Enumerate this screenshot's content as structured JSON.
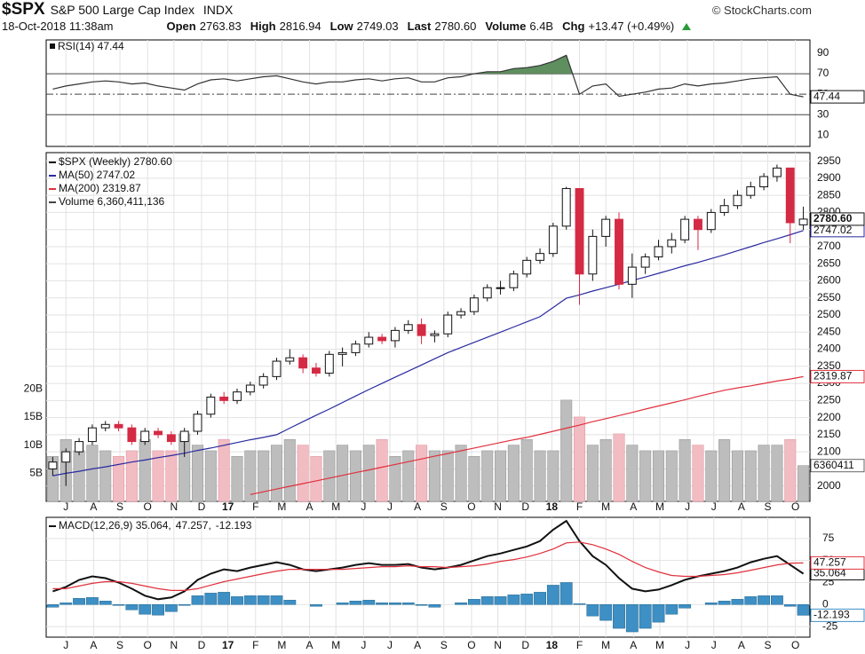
{
  "header": {
    "symbol": "$SPX",
    "name": "S&P 500 Large Cap Index",
    "exchange": "INDX",
    "credit": "© StockCharts.com",
    "date": "18-Oct-2018 11:38am",
    "quote": [
      [
        "Open",
        "2763.83"
      ],
      [
        "High",
        "2816.94"
      ],
      [
        "Low",
        "2749.03"
      ],
      [
        "Last",
        "2780.60"
      ],
      [
        "Volume",
        "6.4B"
      ],
      [
        "Chg",
        "+13.47 (+0.49%)"
      ]
    ]
  },
  "chart_data": [
    {
      "type": "line",
      "series": [
        {
          "name": "RSI(14) 47.44",
          "color": "#333333",
          "fill_color": "#5f8f5f",
          "last_label": "47.44",
          "values": [
            55,
            58,
            60,
            62,
            63,
            62,
            60,
            61,
            58,
            56,
            54,
            60,
            64,
            65,
            63,
            65,
            67,
            68,
            65,
            62,
            60,
            62,
            62,
            64,
            65,
            63,
            65,
            66,
            62,
            62,
            66,
            67,
            70,
            72,
            72,
            75,
            76,
            78,
            82,
            88,
            50,
            58,
            60,
            48,
            50,
            52,
            55,
            56,
            60,
            58,
            60,
            61,
            63,
            65,
            66,
            67,
            50,
            47.44
          ]
        }
      ],
      "ylim": [
        -1,
        103
      ],
      "yticks": [
        90,
        70,
        50,
        30,
        10
      ],
      "levels": [
        70,
        50,
        30
      ]
    },
    {
      "type": "candlestick",
      "ohlc": {
        "name": "$SPX (Weekly) 2780.60",
        "last_label": "2780.60",
        "open": [
          2050,
          2070,
          2100,
          2130,
          2170,
          2180,
          2170,
          2130,
          2160,
          2150,
          2130,
          2160,
          2210,
          2260,
          2250,
          2275,
          2295,
          2320,
          2365,
          2375,
          2345,
          2330,
          2385,
          2390,
          2415,
          2435,
          2425,
          2455,
          2472,
          2440,
          2445,
          2500,
          2510,
          2550,
          2580,
          2580,
          2620,
          2660,
          2680,
          2760,
          2870,
          2620,
          2730,
          2780,
          2590,
          2640,
          2670,
          2700,
          2720,
          2780,
          2750,
          2800,
          2820,
          2850,
          2875,
          2905,
          2930,
          2763.83
        ],
        "high": [
          2085,
          2110,
          2140,
          2180,
          2190,
          2190,
          2180,
          2170,
          2170,
          2160,
          2170,
          2220,
          2270,
          2275,
          2285,
          2305,
          2330,
          2375,
          2400,
          2385,
          2360,
          2395,
          2405,
          2425,
          2450,
          2445,
          2465,
          2485,
          2490,
          2455,
          2510,
          2520,
          2560,
          2590,
          2600,
          2630,
          2670,
          2695,
          2770,
          2875,
          2870,
          2750,
          2790,
          2800,
          2680,
          2680,
          2720,
          2740,
          2790,
          2790,
          2810,
          2840,
          2865,
          2890,
          2915,
          2940,
          2930,
          2816.94
        ],
        "low": [
          2030,
          2000,
          2090,
          2120,
          2160,
          2160,
          2120,
          2120,
          2140,
          2120,
          2085,
          2150,
          2200,
          2240,
          2240,
          2265,
          2285,
          2310,
          2355,
          2330,
          2320,
          2320,
          2350,
          2380,
          2405,
          2415,
          2405,
          2445,
          2415,
          2420,
          2435,
          2490,
          2500,
          2540,
          2560,
          2570,
          2610,
          2650,
          2670,
          2750,
          2530,
          2600,
          2700,
          2575,
          2550,
          2620,
          2660,
          2680,
          2710,
          2690,
          2740,
          2790,
          2810,
          2840,
          2865,
          2890,
          2710,
          2749.03
        ],
        "close": [
          2070,
          2100,
          2130,
          2170,
          2180,
          2170,
          2130,
          2160,
          2150,
          2130,
          2160,
          2210,
          2260,
          2250,
          2275,
          2295,
          2320,
          2365,
          2375,
          2345,
          2330,
          2385,
          2390,
          2415,
          2435,
          2425,
          2455,
          2472,
          2440,
          2445,
          2500,
          2510,
          2550,
          2580,
          2580,
          2620,
          2660,
          2680,
          2760,
          2870,
          2620,
          2730,
          2780,
          2590,
          2640,
          2670,
          2700,
          2720,
          2780,
          2750,
          2800,
          2820,
          2850,
          2875,
          2905,
          2930,
          2770,
          2780.6
        ],
        "up_color": "#ffffff",
        "down_color": "#d42a44"
      },
      "series": [
        {
          "name": "MA(50) 2747.02",
          "color": "#2a2aa0",
          "last_label": "2747.02",
          "values": [
            2030,
            2037,
            2043,
            2050,
            2056,
            2063,
            2070,
            2076,
            2083,
            2089,
            2096,
            2104,
            2111,
            2119,
            2127,
            2135,
            2142,
            2150,
            2169,
            2188,
            2207,
            2225,
            2244,
            2263,
            2282,
            2300,
            2318,
            2336,
            2354,
            2372,
            2390,
            2405,
            2420,
            2435,
            2450,
            2465,
            2480,
            2495,
            2522,
            2549,
            2559,
            2570,
            2580,
            2590,
            2601,
            2611,
            2622,
            2633,
            2644,
            2654,
            2665,
            2676,
            2688,
            2700,
            2712,
            2723,
            2735,
            2747.02
          ]
        },
        {
          "name": "MA(200) 2319.87",
          "color": "#e0303c",
          "last_label": "2319.87",
          "values": [
            null,
            null,
            null,
            null,
            null,
            null,
            null,
            null,
            null,
            null,
            null,
            null,
            null,
            null,
            null,
            1975,
            1983,
            1991,
            1999,
            2007,
            2015,
            2023,
            2031,
            2039,
            2047,
            2055,
            2063,
            2071,
            2079,
            2087,
            2095,
            2103,
            2111,
            2119,
            2127,
            2135,
            2142,
            2151,
            2160,
            2169,
            2178,
            2188,
            2197,
            2206,
            2215,
            2225,
            2234,
            2243,
            2252,
            2262,
            2271,
            2280,
            2287,
            2293,
            2300,
            2307,
            2313,
            2319.87
          ]
        }
      ],
      "volume": {
        "name": "Volume 6,360,411,136",
        "axis": "y2",
        "color": "#bdbdbd",
        "down_color": "#f2bcc3",
        "last_label": "6360411",
        "values": [
          8,
          11,
          9,
          10,
          9,
          8,
          9,
          11,
          9,
          9,
          12,
          10,
          9,
          11,
          8,
          9,
          9,
          10,
          11,
          10,
          8,
          9,
          10,
          9,
          10,
          11,
          8,
          9,
          10,
          9,
          9,
          10,
          8,
          9,
          9,
          10,
          11,
          9,
          9,
          18,
          15,
          10,
          11,
          12,
          10,
          9,
          9,
          9,
          11,
          10,
          9,
          11,
          9,
          9,
          10,
          10,
          11,
          6.360411
        ]
      },
      "ylim": [
        1955,
        2975
      ],
      "yticks": [
        2000,
        2050,
        2100,
        2150,
        2200,
        2250,
        2300,
        2350,
        2400,
        2450,
        2500,
        2550,
        2600,
        2650,
        2700,
        2750,
        2800,
        2850,
        2900,
        2950
      ],
      "y2lim": [
        0,
        62
      ],
      "y2ticks": [
        {
          "value": 5,
          "label": "5B"
        },
        {
          "value": 10,
          "label": "10B"
        },
        {
          "value": 15,
          "label": "15B"
        },
        {
          "value": 20,
          "label": "20B"
        }
      ],
      "xticks": [
        {
          "value": 1.0,
          "label": "J"
        },
        {
          "value": 3.1,
          "label": "A"
        },
        {
          "value": 5.1,
          "label": "S"
        },
        {
          "value": 7.2,
          "label": "O"
        },
        {
          "value": 9.2,
          "label": "N"
        },
        {
          "value": 11.3,
          "label": "D"
        },
        {
          "value": 13.3,
          "label": "17"
        },
        {
          "value": 15.4,
          "label": "F"
        },
        {
          "value": 17.4,
          "label": "M"
        },
        {
          "value": 19.5,
          "label": "A"
        },
        {
          "value": 21.5,
          "label": "M"
        },
        {
          "value": 23.6,
          "label": "J"
        },
        {
          "value": 25.6,
          "label": "J"
        },
        {
          "value": 27.7,
          "label": "A"
        },
        {
          "value": 29.7,
          "label": "S"
        },
        {
          "value": 31.8,
          "label": "O"
        },
        {
          "value": 33.8,
          "label": "N"
        },
        {
          "value": 35.9,
          "label": "D"
        },
        {
          "value": 37.9,
          "label": "18"
        },
        {
          "value": 40.0,
          "label": "F"
        },
        {
          "value": 42.0,
          "label": "M"
        },
        {
          "value": 44.1,
          "label": "A"
        },
        {
          "value": 46.1,
          "label": "M"
        },
        {
          "value": 48.2,
          "label": "J"
        },
        {
          "value": 50.2,
          "label": "J"
        },
        {
          "value": 52.3,
          "label": "A"
        },
        {
          "value": 54.3,
          "label": "S"
        },
        {
          "value": 56.4,
          "label": "O"
        }
      ],
      "grid": true
    },
    {
      "type": "macd",
      "series": [
        {
          "name": "MACD(12,26,9) 35.064,",
          "color": "#111111",
          "last_label": "35.064",
          "values": [
            15,
            20,
            28,
            32,
            30,
            25,
            18,
            10,
            6,
            8,
            15,
            28,
            35,
            40,
            38,
            42,
            45,
            48,
            45,
            40,
            38,
            40,
            42,
            45,
            47,
            45,
            45,
            46,
            42,
            40,
            42,
            45,
            50,
            55,
            58,
            62,
            66,
            72,
            85,
            95,
            72,
            55,
            45,
            30,
            18,
            15,
            17,
            22,
            28,
            32,
            35,
            38,
            42,
            48,
            52,
            55,
            45,
            35.064
          ]
        },
        {
          "name": "47.257,",
          "color": "#e0303c",
          "last_label": "47.257",
          "values": [
            18,
            18,
            21,
            24,
            26,
            26,
            24,
            21,
            18,
            16,
            16,
            18,
            22,
            26,
            29,
            32,
            35,
            38,
            40,
            40,
            40,
            40,
            40,
            41,
            42,
            43,
            43,
            44,
            43,
            43,
            42,
            43,
            44,
            46,
            49,
            51,
            54,
            58,
            63,
            70,
            71,
            68,
            63,
            57,
            49,
            42,
            37,
            33,
            32,
            32,
            33,
            34,
            36,
            39,
            42,
            45,
            47,
            47.257
          ]
        },
        {
          "name": "-12.193",
          "color": "#3d8fc4",
          "kind": "histogram",
          "last_label": "-12.193",
          "values": [
            -3,
            2,
            7,
            8,
            4,
            -1,
            -6,
            -11,
            -12,
            -8,
            -1,
            10,
            13,
            14,
            9,
            10,
            10,
            10,
            5,
            0,
            -2,
            0,
            2,
            4,
            5,
            2,
            2,
            2,
            -1,
            -3,
            0,
            2,
            6,
            9,
            9,
            11,
            12,
            14,
            22,
            25,
            1,
            -13,
            -18,
            -27,
            -31,
            -27,
            -20,
            -11,
            -4,
            0,
            2,
            4,
            6,
            9,
            10,
            10,
            -2,
            -12.193
          ]
        }
      ],
      "ylim": [
        -37,
        99
      ],
      "yticks": [
        75,
        50,
        25,
        0,
        -25
      ],
      "xticks": [
        {
          "value": 1.0,
          "label": "J"
        },
        {
          "value": 3.1,
          "label": "A"
        },
        {
          "value": 5.1,
          "label": "S"
        },
        {
          "value": 7.2,
          "label": "O"
        },
        {
          "value": 9.2,
          "label": "N"
        },
        {
          "value": 11.3,
          "label": "D"
        },
        {
          "value": 13.3,
          "label": "17"
        },
        {
          "value": 15.4,
          "label": "F"
        },
        {
          "value": 17.4,
          "label": "M"
        },
        {
          "value": 19.5,
          "label": "A"
        },
        {
          "value": 21.5,
          "label": "M"
        },
        {
          "value": 23.6,
          "label": "J"
        },
        {
          "value": 25.6,
          "label": "J"
        },
        {
          "value": 27.7,
          "label": "A"
        },
        {
          "value": 29.7,
          "label": "S"
        },
        {
          "value": 31.8,
          "label": "O"
        },
        {
          "value": 33.8,
          "label": "N"
        },
        {
          "value": 35.9,
          "label": "D"
        },
        {
          "value": 37.9,
          "label": "18"
        },
        {
          "value": 40.0,
          "label": "F"
        },
        {
          "value": 42.0,
          "label": "M"
        },
        {
          "value": 44.1,
          "label": "A"
        },
        {
          "value": 46.1,
          "label": "M"
        },
        {
          "value": 48.2,
          "label": "J"
        },
        {
          "value": 50.2,
          "label": "J"
        },
        {
          "value": 52.3,
          "label": "A"
        },
        {
          "value": 54.3,
          "label": "S"
        },
        {
          "value": 56.4,
          "label": "O"
        }
      ],
      "grid": true
    }
  ]
}
